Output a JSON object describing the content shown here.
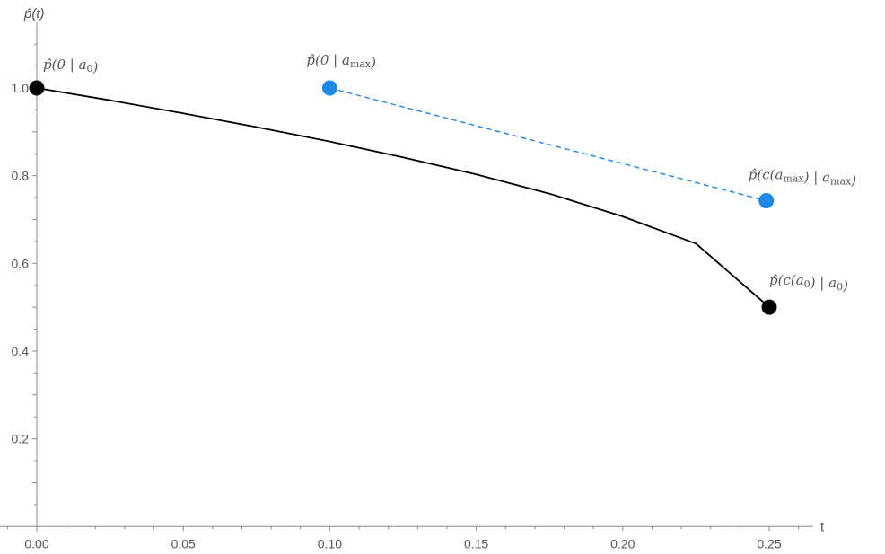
{
  "chart_data": {
    "type": "line",
    "xlabel": "t",
    "ylabel": "p̂(t)",
    "xlim": [
      -0.02,
      0.265
    ],
    "ylim": [
      0,
      1.15
    ],
    "xticks": [
      {
        "value": 0.0,
        "label": "0.00"
      },
      {
        "value": 0.05,
        "label": "0.05"
      },
      {
        "value": 0.1,
        "label": "0.10"
      },
      {
        "value": 0.15,
        "label": "0.15"
      },
      {
        "value": 0.2,
        "label": "0.20"
      },
      {
        "value": 0.25,
        "label": "0.25"
      }
    ],
    "yticks": [
      {
        "value": 0.2,
        "label": "0.2"
      },
      {
        "value": 0.4,
        "label": "0.4"
      },
      {
        "value": 0.6,
        "label": "0.6"
      },
      {
        "value": 0.8,
        "label": "0.8"
      },
      {
        "value": 1.0,
        "label": "1.0"
      }
    ],
    "series": [
      {
        "color": "#000000",
        "dash": false,
        "x": [
          0.0,
          0.025,
          0.05,
          0.075,
          0.1,
          0.125,
          0.15,
          0.175,
          0.2,
          0.225,
          0.25
        ],
        "y": [
          1.0,
          0.972,
          0.942,
          0.911,
          0.878,
          0.842,
          0.803,
          0.759,
          0.707,
          0.645,
          0.5
        ]
      },
      {
        "color": "#1e88e5",
        "dash": true,
        "x": [
          0.1,
          0.249
        ],
        "y": [
          1.0,
          0.743
        ]
      }
    ],
    "points": [
      {
        "x": 0.0,
        "y": 1.0,
        "color": "#000000",
        "label": "p̂(0 | a0)",
        "label_parts": [
          [
            "p̂(0 | ",
            "i"
          ],
          [
            "a",
            "i"
          ],
          [
            "0",
            "sub"
          ],
          [
            ")",
            "i"
          ]
        ]
      },
      {
        "x": 0.1,
        "y": 1.0,
        "color": "#1e88e5",
        "label": "p̂(0 | amax)",
        "label_parts": [
          [
            "p̂(0 | ",
            "i"
          ],
          [
            "a",
            "i"
          ],
          [
            "max",
            "sub"
          ],
          [
            ")",
            "i"
          ]
        ]
      },
      {
        "x": 0.249,
        "y": 0.743,
        "color": "#1e88e5",
        "label": "p̂(c(amax) | amax)",
        "label_parts": [
          [
            "p̂(c(",
            "i"
          ],
          [
            "a",
            "i"
          ],
          [
            "max",
            "sub"
          ],
          [
            ") | ",
            "i"
          ],
          [
            "a",
            "i"
          ],
          [
            "max",
            "sub"
          ],
          [
            ")",
            "i"
          ]
        ]
      },
      {
        "x": 0.25,
        "y": 0.5,
        "color": "#000000",
        "label": "p̂(c(a0) | a0)",
        "label_parts": [
          [
            "p̂(c(",
            "i"
          ],
          [
            "a",
            "i"
          ],
          [
            "0",
            "sub"
          ],
          [
            ") | ",
            "i"
          ],
          [
            "a",
            "i"
          ],
          [
            "0",
            "sub"
          ],
          [
            ")",
            "i"
          ]
        ]
      }
    ]
  }
}
